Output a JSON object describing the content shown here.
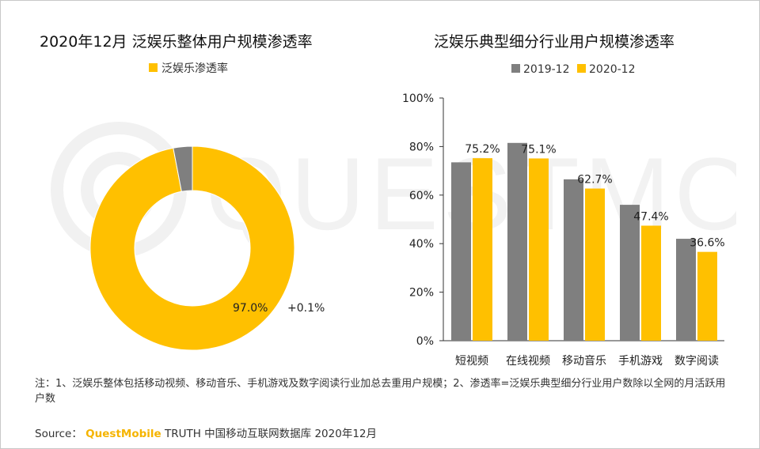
{
  "watermark_text": "QUESTMOBILE",
  "note": "注：1、泛娱乐整体包括移动视频、移动音乐、手机游戏及数字阅读行业加总去重用户规模；2、渗透率=泛娱乐典型细分行业用户数除以全网的月活跃用户数",
  "source": {
    "prefix": "Source：",
    "brand": "QuestMobile",
    "rest": "TRUTH 中国移动互联网数据库 2020年12月"
  },
  "colors": {
    "gold": "#ffc000",
    "gray": "#7f7f7f",
    "red_annotation": "#e00000"
  },
  "chart_data": [
    {
      "type": "pie",
      "title": "2020年12月 泛娱乐整体用户规模渗透率",
      "legend": [
        "泛娱乐渗透率"
      ],
      "legend_position": "top",
      "donut": true,
      "slices": [
        {
          "name": "泛娱乐渗透率",
          "value": 97.0,
          "label": "97.0%"
        },
        {
          "name": "",
          "value": 3.0
        }
      ],
      "annotation": "+0.1%"
    },
    {
      "type": "bar",
      "title": "泛娱乐典型细分行业用户规模渗透率",
      "categories": [
        "短视频",
        "在线视频",
        "移动音乐",
        "手机游戏",
        "数字阅读"
      ],
      "series": [
        {
          "name": "2019-12",
          "values": [
            73.5,
            81.5,
            66.5,
            56.0,
            42.0
          ]
        },
        {
          "name": "2020-12",
          "values": [
            75.2,
            75.1,
            62.7,
            47.4,
            36.6
          ]
        }
      ],
      "data_labels": [
        "75.2%",
        "75.1%",
        "62.7%",
        "47.4%",
        "36.6%"
      ],
      "yticks": [
        "0%",
        "20%",
        "40%",
        "60%",
        "80%",
        "100%"
      ],
      "ylim": [
        0,
        100
      ],
      "legend_position": "top",
      "grid": false
    }
  ]
}
